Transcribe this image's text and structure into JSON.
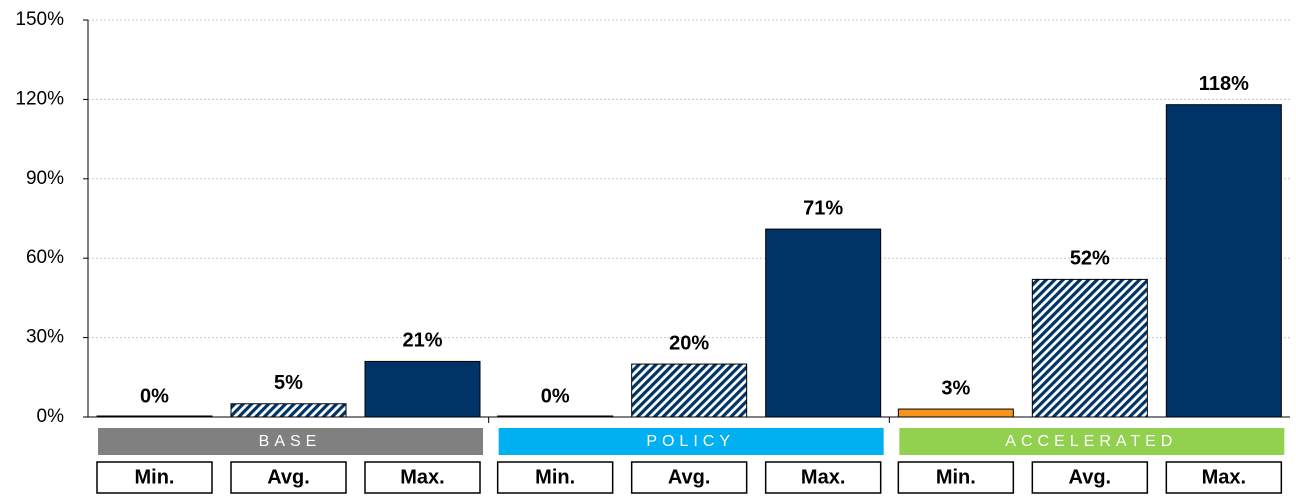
{
  "chart_data": {
    "type": "grouped_bar",
    "categories": [
      "BASE",
      "POLICY",
      "ACCELERATED"
    ],
    "category_colors": [
      "#808080",
      "#00b0f0",
      "#92d050"
    ],
    "series": [
      {
        "name": "Min.",
        "color": "#003366",
        "colors": [
          "#003366",
          "#003366",
          "#f7941d"
        ],
        "values": [
          0,
          0,
          3
        ],
        "value_labels": [
          "0%",
          "0%",
          "3%"
        ]
      },
      {
        "name": "Avg.",
        "color": "#003366",
        "hatched": true,
        "values": [
          5,
          20,
          52
        ],
        "value_labels": [
          "5%",
          "20%",
          "52%"
        ]
      },
      {
        "name": "Max.",
        "color": "#003366",
        "values": [
          21,
          71,
          118
        ],
        "value_labels": [
          "21%",
          "71%",
          "118%"
        ]
      }
    ],
    "ylim": [
      0,
      150
    ],
    "yticks": [
      {
        "value": 0,
        "label": "0%"
      },
      {
        "value": 30,
        "label": "30%"
      },
      {
        "value": 60,
        "label": "60%"
      },
      {
        "value": 90,
        "label": "90%"
      },
      {
        "value": 120,
        "label": "120%"
      },
      {
        "value": 150,
        "label": "150%"
      }
    ],
    "grid": true
  }
}
